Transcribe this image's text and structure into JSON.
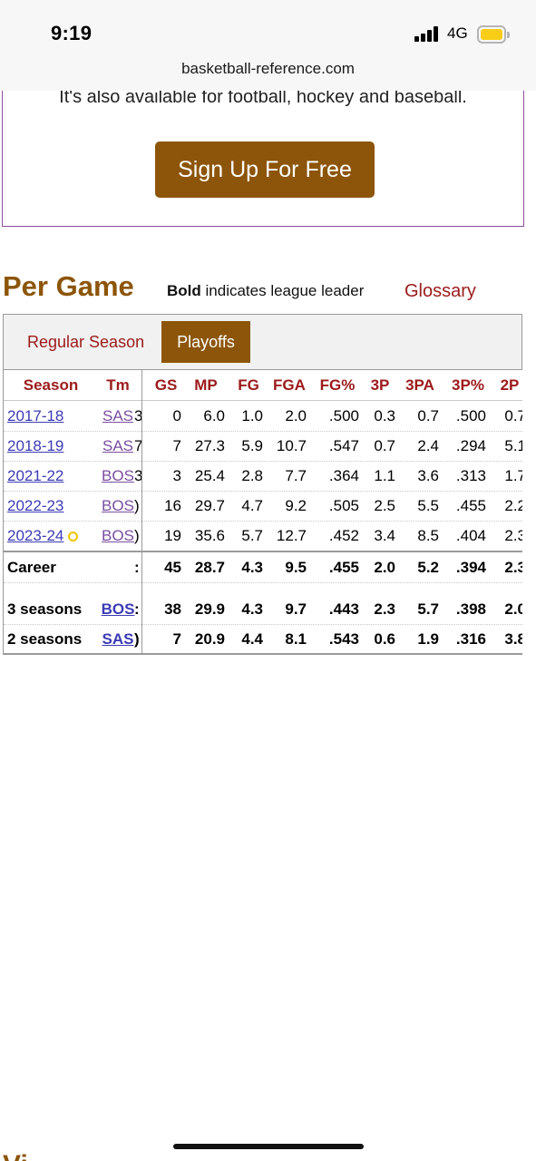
{
  "status": {
    "time": "9:19",
    "network": "4G"
  },
  "browser": {
    "url": "basketball-reference.com"
  },
  "promo": {
    "text": "It's also available for football, hockey and baseball.",
    "button": "Sign Up For Free"
  },
  "section": {
    "title": "Per Game",
    "note_bold": "Bold",
    "note_rest": " indicates league leader",
    "glossary": "Glossary",
    "next_title": "Vi"
  },
  "tabs": {
    "regular": "Regular Season",
    "playoffs": "Playoffs"
  },
  "colors": {
    "brand_brown": "#8c5509",
    "header_red": "#9c1a1a",
    "link_blue": "#3b3bb5",
    "link_purple": "#7a4ea0",
    "award_ring": "#f2c400"
  },
  "table": {
    "headers": [
      "Season",
      "Tm",
      "GS",
      "MP",
      "FG",
      "FGA",
      "FG%",
      "3P",
      "3PA",
      "3P%",
      "2P"
    ],
    "rows": [
      {
        "season": "2017-18",
        "tm": "SAS",
        "lg": "3",
        "gs": "0",
        "mp": "6.0",
        "fg": "1.0",
        "fga": "2.0",
        "fgp": ".500",
        "p3": "0.3",
        "p3a": "0.7",
        "p3p": ".500",
        "p2": "0.7",
        "award": false
      },
      {
        "season": "2018-19",
        "tm": "SAS",
        "lg": "7",
        "gs": "7",
        "mp": "27.3",
        "fg": "5.9",
        "fga": "10.7",
        "fgp": ".547",
        "p3": "0.7",
        "p3a": "2.4",
        "p3p": ".294",
        "p2": "5.1",
        "award": false
      },
      {
        "season": "2021-22",
        "tm": "BOS",
        "lg": "3",
        "gs": "3",
        "mp": "25.4",
        "fg": "2.8",
        "fga": "7.7",
        "fgp": ".364",
        "p3": "1.1",
        "p3a": "3.6",
        "p3p": ".313",
        "p2": "1.7",
        "award": false
      },
      {
        "season": "2022-23",
        "tm": "BOS",
        "lg": ")",
        "gs": "16",
        "mp": "29.7",
        "fg": "4.7",
        "fga": "9.2",
        "fgp": ".505",
        "p3": "2.5",
        "p3a": "5.5",
        "p3p": ".455",
        "p2": "2.2",
        "award": false
      },
      {
        "season": "2023-24",
        "tm": "BOS",
        "lg": ")",
        "gs": "19",
        "mp": "35.6",
        "fg": "5.7",
        "fga": "12.7",
        "fgp": ".452",
        "p3": "3.4",
        "p3a": "8.5",
        "p3p": ".404",
        "p2": "2.3",
        "award": true
      }
    ],
    "career": {
      "label": "Career",
      "lg": ":",
      "gs": "45",
      "mp": "28.7",
      "fg": "4.3",
      "fga": "9.5",
      "fgp": ".455",
      "p3": "2.0",
      "p3a": "5.2",
      "p3p": ".394",
      "p2": "2.3"
    },
    "splits": [
      {
        "label": "3 seasons",
        "tm": "BOS",
        "lg": ":",
        "gs": "38",
        "mp": "29.9",
        "fg": "4.3",
        "fga": "9.7",
        "fgp": ".443",
        "p3": "2.3",
        "p3a": "5.7",
        "p3p": ".398",
        "p2": "2.0"
      },
      {
        "label": "2 seasons",
        "tm": "SAS",
        "lg": ")",
        "gs": "7",
        "mp": "20.9",
        "fg": "4.4",
        "fga": "8.1",
        "fgp": ".543",
        "p3": "0.6",
        "p3a": "1.9",
        "p3p": ".316",
        "p2": "3.8"
      }
    ]
  }
}
